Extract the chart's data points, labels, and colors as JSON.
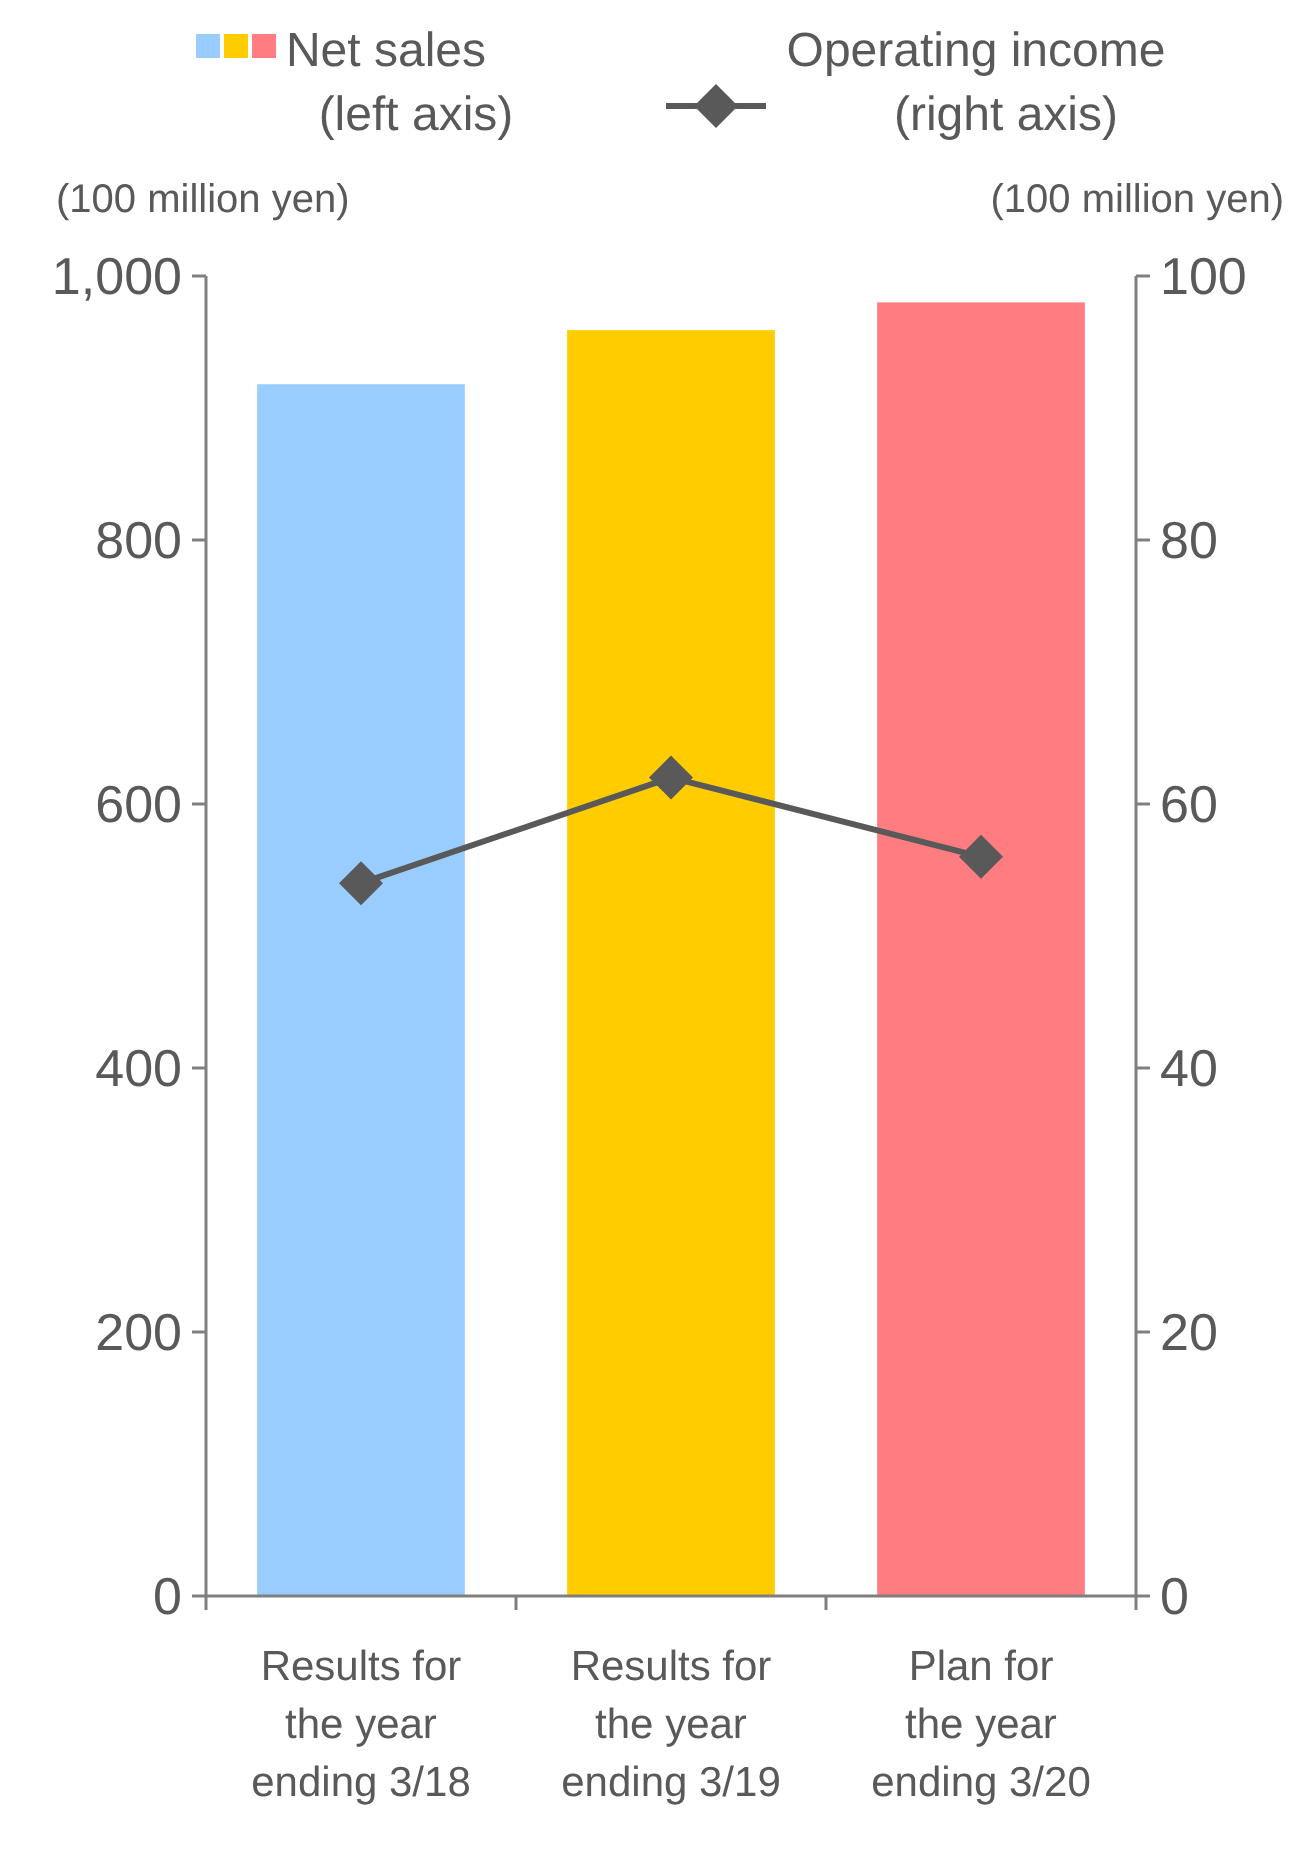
{
  "chart_data": {
    "type": "bar",
    "categories": [
      "Results for the year ending 3/18",
      "Results for the year ending 3/19",
      "Plan for the year ending 3/20"
    ],
    "series": [
      {
        "name": "Net sales (left axis)",
        "colors": [
          "#99ccff",
          "#ffcc00",
          "#ff7c80"
        ],
        "values": [
          918,
          959,
          980
        ]
      },
      {
        "name": "Operating income (right axis)",
        "type": "line",
        "axis": "y2",
        "color": "#595959",
        "marker": "diamond",
        "values": [
          54,
          62,
          56
        ]
      }
    ],
    "ylabel": "(100 million yen)",
    "y2label": "(100 million yen)",
    "ylim": [
      0,
      1000
    ],
    "yticks": [
      0,
      200,
      400,
      600,
      800,
      {
        "value": 1000,
        "label": "1,000"
      }
    ],
    "y2lim": [
      0,
      100
    ],
    "y2ticks": [
      0,
      20,
      40,
      60,
      80,
      100
    ],
    "legend": "top",
    "grid": false
  }
}
